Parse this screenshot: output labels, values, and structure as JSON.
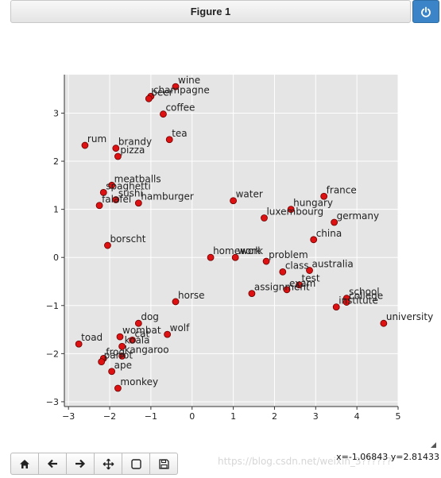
{
  "window": {
    "title": "Figure 1"
  },
  "icons": {
    "power": "power-icon",
    "home": "home-icon",
    "back": "arrow-left-icon",
    "forward": "arrow-right-icon",
    "pan": "move-icon",
    "zoom": "zoom-rect-icon",
    "save": "save-icon"
  },
  "status": {
    "coords": "x=-1.06843 y=2.81433",
    "watermark": "https://blog.csdn.net/weixin_3??????"
  },
  "colors": {
    "point_fill": "#dd1111",
    "plot_bg": "#e5e5e5",
    "accent": "#3a84c7"
  },
  "chart_data": {
    "type": "scatter",
    "title": "",
    "xlabel": "",
    "ylabel": "",
    "xlim": [
      -3.1,
      5.0
    ],
    "ylim": [
      -3.1,
      3.8
    ],
    "xticks": [
      -3,
      -2,
      -1,
      0,
      1,
      2,
      3,
      4,
      5
    ],
    "yticks": [
      -3,
      -2,
      -1,
      0,
      1,
      2,
      3
    ],
    "grid": true,
    "points": [
      {
        "label": "wine",
        "x": -0.4,
        "y": 3.55
      },
      {
        "label": "champagne",
        "x": -1.0,
        "y": 3.35
      },
      {
        "label": "beer",
        "x": -1.05,
        "y": 3.3
      },
      {
        "label": "coffee",
        "x": -0.7,
        "y": 2.98
      },
      {
        "label": "tea",
        "x": -0.55,
        "y": 2.45
      },
      {
        "label": "rum",
        "x": -2.6,
        "y": 2.33
      },
      {
        "label": "brandy",
        "x": -1.85,
        "y": 2.27
      },
      {
        "label": "pizza",
        "x": -1.8,
        "y": 2.1
      },
      {
        "label": "meatballs",
        "x": -1.95,
        "y": 1.5
      },
      {
        "label": "spaghetti",
        "x": -2.15,
        "y": 1.35
      },
      {
        "label": "sushi",
        "x": -1.85,
        "y": 1.2
      },
      {
        "label": "falafel",
        "x": -2.25,
        "y": 1.08
      },
      {
        "label": "hamburger",
        "x": -1.3,
        "y": 1.13
      },
      {
        "label": "borscht",
        "x": -2.05,
        "y": 0.25
      },
      {
        "label": "water",
        "x": 1.0,
        "y": 1.18
      },
      {
        "label": "france",
        "x": 3.2,
        "y": 1.27
      },
      {
        "label": "hungary",
        "x": 2.4,
        "y": 1.0
      },
      {
        "label": "luxembourg",
        "x": 1.75,
        "y": 0.82
      },
      {
        "label": "germany",
        "x": 3.45,
        "y": 0.73
      },
      {
        "label": "china",
        "x": 2.95,
        "y": 0.37
      },
      {
        "label": "homework",
        "x": 0.45,
        "y": 0.0
      },
      {
        "label": "work",
        "x": 1.05,
        "y": 0.0
      },
      {
        "label": "problem",
        "x": 1.8,
        "y": -0.08
      },
      {
        "label": "class",
        "x": 2.2,
        "y": -0.3
      },
      {
        "label": "australia",
        "x": 2.85,
        "y": -0.27
      },
      {
        "label": "test",
        "x": 2.6,
        "y": -0.57
      },
      {
        "label": "exam",
        "x": 2.3,
        "y": -0.67
      },
      {
        "label": "assignment",
        "x": 1.45,
        "y": -0.75
      },
      {
        "label": "school",
        "x": 3.75,
        "y": -0.85
      },
      {
        "label": "college",
        "x": 3.75,
        "y": -0.93
      },
      {
        "label": "institute",
        "x": 3.5,
        "y": -1.03
      },
      {
        "label": "university",
        "x": 4.65,
        "y": -1.37
      },
      {
        "label": "horse",
        "x": -0.4,
        "y": -0.92
      },
      {
        "label": "dog",
        "x": -1.3,
        "y": -1.37
      },
      {
        "label": "wolf",
        "x": -0.6,
        "y": -1.6
      },
      {
        "label": "wombat",
        "x": -1.75,
        "y": -1.65
      },
      {
        "label": "cat",
        "x": -1.45,
        "y": -1.72
      },
      {
        "label": "koala",
        "x": -1.7,
        "y": -1.85
      },
      {
        "label": "kangaroo",
        "x": -1.7,
        "y": -2.05
      },
      {
        "label": "toad",
        "x": -2.75,
        "y": -1.8
      },
      {
        "label": "frog",
        "x": -2.15,
        "y": -2.1
      },
      {
        "label": "parrot",
        "x": -2.2,
        "y": -2.17
      },
      {
        "label": "ape",
        "x": -1.95,
        "y": -2.37
      },
      {
        "label": "monkey",
        "x": -1.8,
        "y": -2.72
      }
    ]
  }
}
